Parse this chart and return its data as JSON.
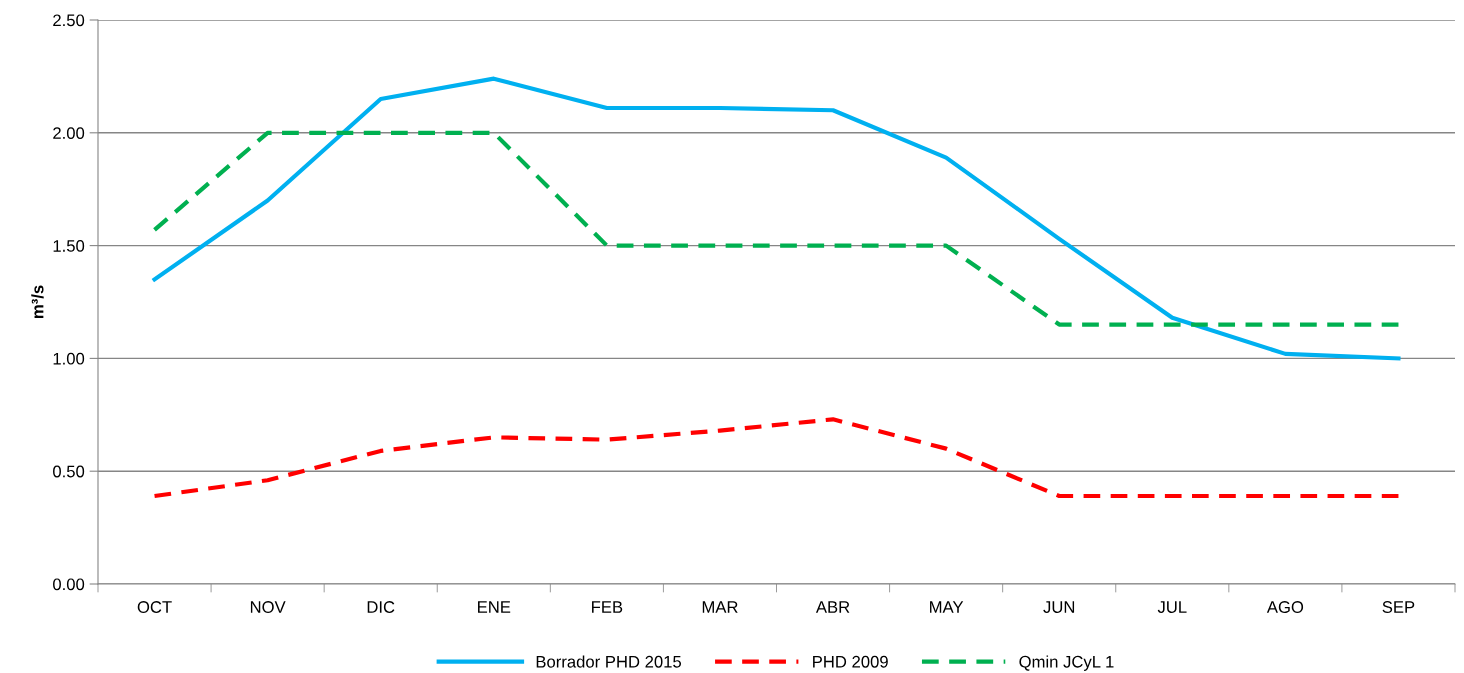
{
  "chart_data": {
    "type": "line",
    "ylabel": "m³/s",
    "categories": [
      "OCT",
      "NOV",
      "DIC",
      "ENE",
      "FEB",
      "MAR",
      "ABR",
      "MAY",
      "JUN",
      "JUL",
      "AGO",
      "SEP"
    ],
    "series": [
      {
        "name": "Borrador PHD 2015",
        "color": "#00b0f0",
        "line_style": "solid",
        "values": [
          1.35,
          1.7,
          2.15,
          2.24,
          2.11,
          2.11,
          2.1,
          1.89,
          1.53,
          1.18,
          1.02,
          1.0
        ]
      },
      {
        "name": "PHD 2009",
        "color": "#ff0000",
        "line_style": "dashed",
        "values": [
          0.39,
          0.46,
          0.59,
          0.65,
          0.64,
          0.68,
          0.73,
          0.6,
          0.39,
          0.39,
          0.39,
          0.39
        ]
      },
      {
        "name": "Qmin JCyL 1",
        "color": "#00b050",
        "line_style": "dashed",
        "values": [
          1.57,
          2.0,
          2.0,
          2.0,
          1.5,
          1.5,
          1.5,
          1.5,
          1.15,
          1.15,
          1.15,
          1.15
        ]
      }
    ],
    "ylim": [
      0,
      2.5
    ],
    "yticks": [
      {
        "value": 0,
        "label": "0.00"
      },
      {
        "value": 0.5,
        "label": "0.50"
      },
      {
        "value": 1,
        "label": "1.00"
      },
      {
        "value": 1.5,
        "label": "1.50"
      },
      {
        "value": 2,
        "label": "2.00"
      },
      {
        "value": 2.5,
        "label": "2.50"
      }
    ],
    "grid": "y",
    "legend": "bottom",
    "marker": "none"
  }
}
